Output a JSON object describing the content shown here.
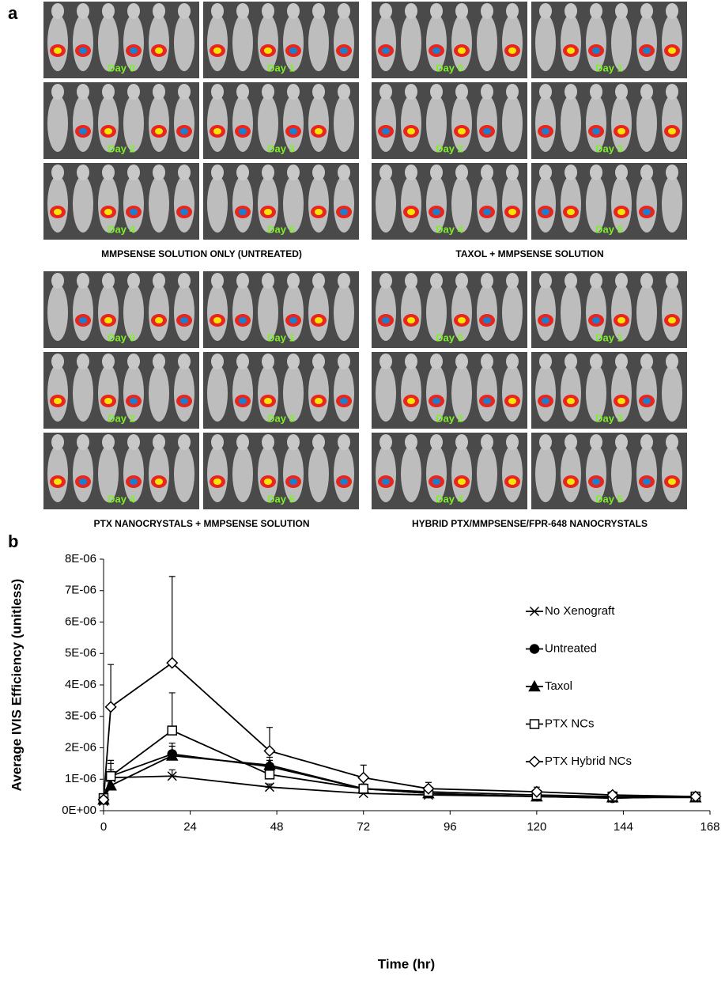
{
  "panel_a": {
    "label": "a",
    "groups": [
      {
        "caption": "MMPSENSE SOLUTION ONLY (UNTREATED)",
        "days": [
          "Day 0",
          "Day 1",
          "Day 2",
          "Day 3",
          "Day 4",
          "Day 5"
        ]
      },
      {
        "caption": "TAXOL + MMPSENSE SOLUTION",
        "days": [
          "Day 0",
          "Day 1",
          "Day 2",
          "Day 3",
          "Day 4",
          "Day 5"
        ]
      },
      {
        "caption": "PTX NANOCRYSTALS + MMPSENSE SOLUTION",
        "days": [
          "Day 0",
          "Day 1",
          "Day 2",
          "Day 3",
          "Day 4",
          "Day 5"
        ]
      },
      {
        "caption": "HYBRID PTX/MMPSENSE/FPR-648 NANOCRYSTALS",
        "days": [
          "Day 0",
          "Day 1",
          "Day 2",
          "Day 3",
          "Day 4",
          "Day 5"
        ]
      }
    ]
  },
  "chart_data": {
    "type": "line",
    "label": "b",
    "x_label": "Time (hr)",
    "y_label": "Average IVIS Efficiency (unitless)",
    "x": [
      0,
      2,
      19,
      46,
      72,
      90,
      120,
      141,
      164
    ],
    "xlim": [
      0,
      168
    ],
    "xticks": [
      0,
      24,
      48,
      72,
      96,
      120,
      144,
      168
    ],
    "ylim": [
      0,
      8e-06
    ],
    "yticks": [
      {
        "value": 0,
        "label": "0E+00"
      },
      {
        "value": 1e-06,
        "label": "1E-06"
      },
      {
        "value": 2e-06,
        "label": "2E-06"
      },
      {
        "value": 3e-06,
        "label": "3E-06"
      },
      {
        "value": 4e-06,
        "label": "4E-06"
      },
      {
        "value": 5e-06,
        "label": "5E-06"
      },
      {
        "value": 6e-06,
        "label": "6E-06"
      },
      {
        "value": 7e-06,
        "label": "7E-06"
      },
      {
        "value": 8e-06,
        "label": "8E-06"
      }
    ],
    "legend": "upper right",
    "color": "#000000",
    "series": [
      {
        "name": "No Xenograft",
        "marker": "x",
        "values": [
          3e-07,
          1.05e-06,
          1.1e-06,
          7.5e-07,
          5.5e-07,
          5e-07,
          4.5e-07,
          4e-07,
          4.5e-07
        ],
        "errors": [
          5e-08,
          1e-07,
          2e-07,
          1e-07,
          1e-07,
          1e-07,
          5e-08,
          5e-08,
          5e-08
        ]
      },
      {
        "name": "Untreated",
        "marker": "circle",
        "values": [
          3.5e-07,
          1.1e-06,
          1.8e-06,
          1.4e-06,
          7e-07,
          5.5e-07,
          4.5e-07,
          4e-07,
          4.5e-07
        ],
        "errors": [
          1e-07,
          2e-07,
          3.5e-07,
          2e-07,
          1e-07,
          1e-07,
          5e-08,
          5e-08,
          5e-08
        ]
      },
      {
        "name": "Taxol",
        "marker": "triangle",
        "values": [
          3.5e-07,
          8e-07,
          1.75e-06,
          1.45e-06,
          7e-07,
          5.5e-07,
          4.5e-07,
          4.2e-07,
          4.2e-07
        ],
        "errors": [
          1e-07,
          8e-07,
          3e-07,
          2.5e-07,
          1e-07,
          1e-07,
          5e-08,
          5e-08,
          5e-08
        ]
      },
      {
        "name": "PTX NCs",
        "marker": "square",
        "values": [
          4e-07,
          1.1e-06,
          2.55e-06,
          1.15e-06,
          7e-07,
          6e-07,
          5e-07,
          4.5e-07,
          4.5e-07
        ],
        "errors": [
          1e-07,
          4e-07,
          1.2e-06,
          3e-07,
          1.5e-07,
          1e-07,
          5e-08,
          5e-08,
          5e-08
        ]
      },
      {
        "name": "PTX Hybrid NCs",
        "marker": "diamond",
        "values": [
          3.5e-07,
          3.3e-06,
          4.7e-06,
          1.9e-06,
          1.05e-06,
          7e-07,
          6e-07,
          5e-07,
          4.5e-07
        ],
        "errors": [
          1e-07,
          1.35e-06,
          2.75e-06,
          7.5e-07,
          4e-07,
          2e-07,
          1.5e-07,
          1e-07,
          5e-08
        ]
      }
    ]
  }
}
